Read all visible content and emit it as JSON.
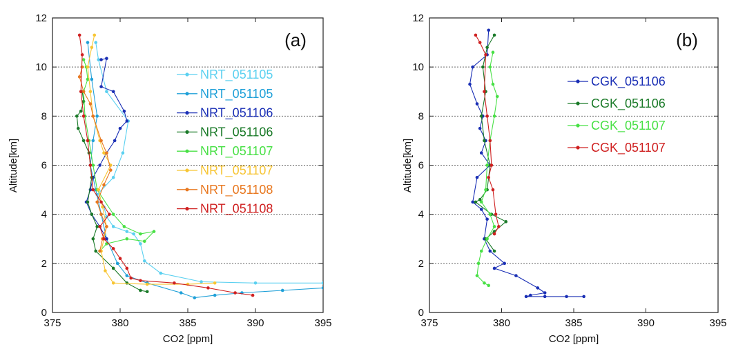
{
  "chart_data": [
    {
      "type": "line",
      "panel_label": "(a)",
      "xlabel": "CO2 [ppm]",
      "ylabel": "Altitude[km]",
      "xlim": [
        375,
        395
      ],
      "ylim": [
        0,
        12
      ],
      "xticks": [
        375,
        380,
        385,
        390,
        395
      ],
      "yticks": [
        0,
        2,
        4,
        6,
        8,
        10,
        12
      ],
      "grid": "horizontal dotted",
      "legend_position": "right",
      "series": [
        {
          "name": "NRT_051105",
          "color": "#5ad0f0",
          "x": [
            378.2,
            378.4,
            379.0,
            380.6,
            380.2,
            379.5,
            378.3,
            378.8,
            379.0,
            379.5,
            380.5,
            381.0,
            381.5,
            381.8,
            383.0,
            386.0,
            390.0,
            395.0
          ],
          "y": [
            11.0,
            10.3,
            9.0,
            7.8,
            6.5,
            5.5,
            4.8,
            4.3,
            3.9,
            3.5,
            3.3,
            3.2,
            2.8,
            2.1,
            1.6,
            1.25,
            1.2,
            1.2
          ]
        },
        {
          "name": "NRT_051105",
          "color": "#1fa0d8",
          "x": [
            377.6,
            377.9,
            378.3,
            378.0,
            377.8,
            378.2,
            378.6,
            379.0,
            379.8,
            380.5,
            382.0,
            384.5,
            385.5,
            387.0,
            389.0,
            392.0,
            395.0
          ],
          "y": [
            11.0,
            9.5,
            8.0,
            7.0,
            6.0,
            5.0,
            4.0,
            3.0,
            2.0,
            1.5,
            1.2,
            0.8,
            0.6,
            0.7,
            0.8,
            0.9,
            1.0
          ]
        },
        {
          "name": "NRT_051106",
          "color": "#1a2fb5",
          "x": [
            378.6,
            379.0,
            378.6,
            379.5,
            380.3,
            380.5,
            380.0,
            379.6,
            379.0,
            378.5,
            378.0,
            377.8,
            377.5,
            377.9,
            378.5,
            379.0
          ],
          "y": [
            10.3,
            10.35,
            9.2,
            9.0,
            8.2,
            7.8,
            7.5,
            7.0,
            6.5,
            6.0,
            5.5,
            5.0,
            4.5,
            4.0,
            3.5,
            3.0
          ]
        },
        {
          "name": "NRT_051106",
          "color": "#1a7a28",
          "x": [
            377.2,
            377.3,
            377.1,
            376.8,
            376.9,
            377.3,
            377.7,
            377.9,
            377.6,
            377.9,
            378.3,
            378.0,
            378.2,
            379.5,
            380.5,
            381.5,
            382.0
          ],
          "y": [
            9.0,
            8.6,
            8.2,
            8.0,
            7.5,
            7.0,
            6.5,
            5.5,
            4.5,
            4.0,
            3.5,
            3.0,
            2.5,
            1.8,
            1.2,
            0.9,
            0.85
          ]
        },
        {
          "name": "NRT_051107",
          "color": "#48e045",
          "x": [
            377.3,
            377.5,
            377.6,
            377.3,
            377.4,
            377.7,
            378.0,
            378.3,
            379.5,
            380.3,
            381.5,
            382.5,
            381.8,
            380.5,
            379.0,
            378.5
          ],
          "y": [
            10.3,
            10.0,
            9.5,
            9.0,
            8.0,
            7.0,
            6.0,
            5.0,
            4.0,
            3.5,
            3.2,
            3.3,
            2.9,
            3.0,
            2.8,
            2.5
          ]
        },
        {
          "name": "NRT_051107",
          "color": "#f7c533",
          "x": [
            378.1,
            377.9,
            377.6,
            377.8,
            378.0,
            378.5,
            378.8,
            379.3,
            378.4,
            378.7,
            379.0,
            378.8,
            378.6,
            378.9,
            379.5,
            382.0,
            385.0,
            387.0
          ],
          "y": [
            11.3,
            10.8,
            10.0,
            9.0,
            8.0,
            7.0,
            6.5,
            6.0,
            5.0,
            4.3,
            3.5,
            3.0,
            2.5,
            1.7,
            1.2,
            1.15,
            1.15,
            1.2
          ]
        },
        {
          "name": "NRT_051108",
          "color": "#e87820",
          "x": [
            377.2,
            377.0,
            377.3,
            377.8,
            378.0,
            378.6,
            379.0,
            379.3,
            378.8,
            378.3,
            378.6,
            379.0,
            378.7,
            378.5
          ],
          "y": [
            10.0,
            9.6,
            9.0,
            8.5,
            8.0,
            7.0,
            6.5,
            5.8,
            5.2,
            4.5,
            4.0,
            3.5,
            3.0,
            2.5
          ]
        },
        {
          "name": "NRT_051108",
          "color": "#cf2020",
          "x": [
            377.0,
            377.2,
            377.1,
            377.3,
            377.6,
            377.8,
            378.0,
            378.6,
            379.2,
            378.5,
            378.8,
            379.5,
            380.0,
            380.5,
            380.8,
            381.5,
            384.0,
            386.5,
            388.5,
            389.8
          ],
          "y": [
            11.3,
            10.5,
            9.0,
            8.0,
            7.0,
            6.0,
            5.0,
            4.5,
            4.0,
            3.5,
            3.0,
            2.6,
            2.2,
            1.8,
            1.4,
            1.3,
            1.2,
            1.0,
            0.8,
            0.7
          ]
        }
      ]
    },
    {
      "type": "line",
      "panel_label": "(b)",
      "xlabel": "CO2 [ppm]",
      "ylabel": "Altitude[km]",
      "xlim": [
        375,
        395
      ],
      "ylim": [
        0,
        12
      ],
      "xticks": [
        375,
        380,
        385,
        390,
        395
      ],
      "yticks": [
        0,
        2,
        4,
        6,
        8,
        10,
        12
      ],
      "grid": "horizontal dotted",
      "legend_position": "upper right",
      "series": [
        {
          "name": "CGK_051106",
          "color": "#1a2fb5",
          "x": [
            379.1,
            379.0,
            378.0,
            377.8,
            378.3,
            378.7,
            378.5,
            378.9,
            378.6,
            379.2,
            378.3,
            378.0,
            378.6,
            379.0,
            378.8,
            379.2,
            380.2,
            379.5,
            381.0,
            382.5,
            383.0,
            382.0,
            381.7,
            383.0,
            384.5,
            385.7
          ],
          "y": [
            11.5,
            10.5,
            10.0,
            9.3,
            8.5,
            8.0,
            7.5,
            7.0,
            6.5,
            6.0,
            5.5,
            4.5,
            4.2,
            3.8,
            3.0,
            2.5,
            2.0,
            1.8,
            1.5,
            1.0,
            0.8,
            0.7,
            0.65,
            0.65,
            0.65,
            0.65
          ]
        },
        {
          "name": "CGK_051106",
          "color": "#1a7a28",
          "x": [
            379.5,
            379.0,
            378.7,
            378.9,
            378.6,
            378.8,
            379.2,
            379.0,
            378.5,
            378.2,
            379.3,
            380.3,
            379.5,
            378.9,
            379.5
          ],
          "y": [
            11.3,
            10.8,
            10.0,
            9.0,
            8.0,
            7.0,
            6.0,
            5.0,
            4.6,
            4.5,
            4.0,
            3.7,
            3.3,
            3.0,
            2.5
          ]
        },
        {
          "name": "CGK_051107",
          "color": "#48e045",
          "x": [
            379.4,
            379.2,
            379.4,
            379.7,
            379.5,
            379.2,
            379.0,
            378.9,
            378.6,
            379.2,
            379.5,
            379.0,
            378.6,
            378.4,
            378.3,
            378.8,
            379.1
          ],
          "y": [
            10.6,
            10.0,
            9.3,
            8.8,
            8.0,
            7.0,
            6.0,
            5.0,
            4.5,
            4.0,
            3.5,
            3.0,
            2.5,
            2.0,
            1.5,
            1.2,
            1.1
          ]
        },
        {
          "name": "CGK_051107",
          "color": "#cf2020",
          "x": [
            378.2,
            378.5,
            378.9,
            378.8,
            379.0,
            379.2,
            379.3,
            379.1,
            379.4,
            379.6,
            379.8,
            379.5
          ],
          "y": [
            11.3,
            11.0,
            10.5,
            9.0,
            8.0,
            7.0,
            6.0,
            5.5,
            5.0,
            4.0,
            3.5,
            3.2
          ]
        }
      ]
    }
  ]
}
